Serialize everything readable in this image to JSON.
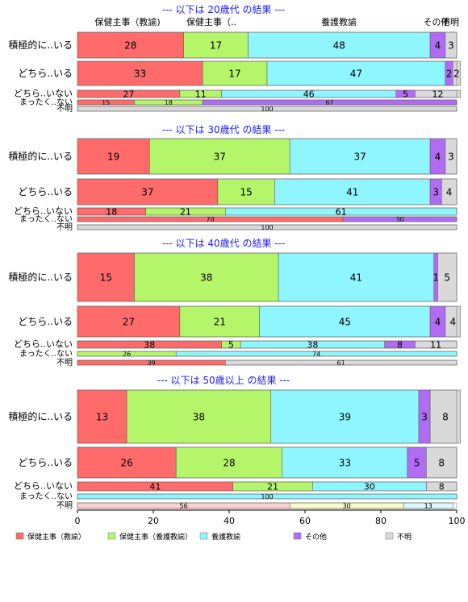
{
  "chart_data": {
    "type": "bar",
    "stacked": "horizontal-100",
    "x": {
      "ticks": [
        0,
        20,
        40,
        60,
        80,
        100
      ],
      "range": [
        0,
        100
      ]
    },
    "column_headers": [
      "保健主事（教諭)",
      "保健主事（..",
      "養護教諭",
      "その他",
      "不明"
    ],
    "legend": {
      "position": "bottom",
      "items": [
        {
          "name": "保健主事（教諭）",
          "color": "#ff6b6b"
        },
        {
          "name": "保健主事（養護教諭）",
          "color": "#b5f56a"
        },
        {
          "name": "養護教諭",
          "color": "#8ff6ff"
        },
        {
          "name": "その他",
          "color": "#b06cf4"
        },
        {
          "name": "不明",
          "color": "#d9d9d9"
        }
      ]
    },
    "colors": [
      "#ff6b6b",
      "#b5f56a",
      "#8ff6ff",
      "#b06cf4",
      "#d9d9d9"
    ],
    "panels": [
      {
        "title": "--- 以下は 20歳代 の結果 ---",
        "rows": [
          {
            "label": "積極的に..いる",
            "values": [
              28,
              17,
              48,
              4,
              3
            ],
            "labels": [
              "28",
              "17",
              "48",
              "4",
              "3"
            ]
          },
          {
            "label": "どちら..いる",
            "values": [
              33,
              17,
              47,
              2,
              2
            ],
            "labels": [
              "33",
              "17",
              "47",
              "2",
              "2"
            ]
          },
          {
            "label": "どちら..いない",
            "values": [
              27,
              11,
              46,
              5,
              12
            ],
            "labels": [
              "27",
              "11",
              "46",
              "5",
              "12"
            ]
          },
          {
            "label": "まったく..ない",
            "values": [
              15,
              18,
              0,
              67,
              0
            ],
            "labels": [
              "15",
              "18",
              "",
              "67",
              ""
            ]
          },
          {
            "label": "不明",
            "values": [
              0,
              0,
              0,
              0,
              100
            ],
            "labels": [
              "",
              "",
              "",
              "",
              "100"
            ]
          }
        ]
      },
      {
        "title": "--- 以下は 30歳代 の結果 ---",
        "rows": [
          {
            "label": "積極的に..いる",
            "values": [
              19,
              37,
              37,
              4,
              3
            ],
            "labels": [
              "19",
              "37",
              "37",
              "4",
              "3"
            ]
          },
          {
            "label": "どちら..いる",
            "values": [
              37,
              15,
              41,
              3,
              4
            ],
            "labels": [
              "37",
              "15",
              "41",
              "3",
              "4"
            ]
          },
          {
            "label": "どちら..いない",
            "values": [
              18,
              21,
              61,
              0,
              0
            ],
            "labels": [
              "18",
              "21",
              "61",
              "",
              ""
            ]
          },
          {
            "label": "まったく..ない",
            "values": [
              70,
              0,
              0,
              30,
              0
            ],
            "labels": [
              "70",
              "",
              "",
              "30",
              ""
            ]
          },
          {
            "label": "不明",
            "values": [
              0,
              0,
              0,
              0,
              100
            ],
            "labels": [
              "",
              "",
              "",
              "",
              "100"
            ]
          }
        ]
      },
      {
        "title": "--- 以下は 40歳代 の結果 ---",
        "rows": [
          {
            "label": "積極的に..いる",
            "values": [
              15,
              38,
              41,
              1,
              5
            ],
            "labels": [
              "15",
              "38",
              "41",
              "1",
              "5"
            ]
          },
          {
            "label": "どちら..いる",
            "values": [
              27,
              21,
              45,
              4,
              4
            ],
            "labels": [
              "27",
              "21",
              "45",
              "4",
              "4"
            ]
          },
          {
            "label": "どちら..いない",
            "values": [
              38,
              5,
              38,
              8,
              11
            ],
            "labels": [
              "38",
              "5",
              "38",
              "8",
              "11"
            ]
          },
          {
            "label": "まったく..ない",
            "values": [
              0,
              26,
              74,
              0,
              0
            ],
            "labels": [
              "",
              "26",
              "74",
              "",
              ""
            ]
          },
          {
            "label": "不明",
            "values": [
              39,
              0,
              0,
              0,
              61
            ],
            "labels": [
              "39",
              "",
              "",
              "",
              "61"
            ]
          }
        ]
      },
      {
        "title": "--- 以下は 50歳以上 の結果 ---",
        "rows": [
          {
            "label": "積極的に..いる",
            "values": [
              13,
              38,
              39,
              3,
              8
            ],
            "labels": [
              "13",
              "38",
              "39",
              "3",
              "8"
            ]
          },
          {
            "label": "どちら..いる",
            "values": [
              26,
              28,
              33,
              5,
              8
            ],
            "labels": [
              "26",
              "28",
              "33",
              "5",
              "8"
            ]
          },
          {
            "label": "どちら..いない",
            "values": [
              41,
              21,
              30,
              0,
              8
            ],
            "labels": [
              "41",
              "21",
              "30",
              "",
              "8"
            ]
          },
          {
            "label": "まったく..ない",
            "values": [
              0,
              0,
              100,
              0,
              0
            ],
            "labels": [
              "",
              "",
              "100",
              "",
              ""
            ]
          },
          {
            "label": "不明",
            "values": [
              56,
              30,
              13,
              0,
              0
            ],
            "labels": [
              "56",
              "30",
              "13",
              "",
              ""
            ]
          }
        ]
      }
    ]
  }
}
